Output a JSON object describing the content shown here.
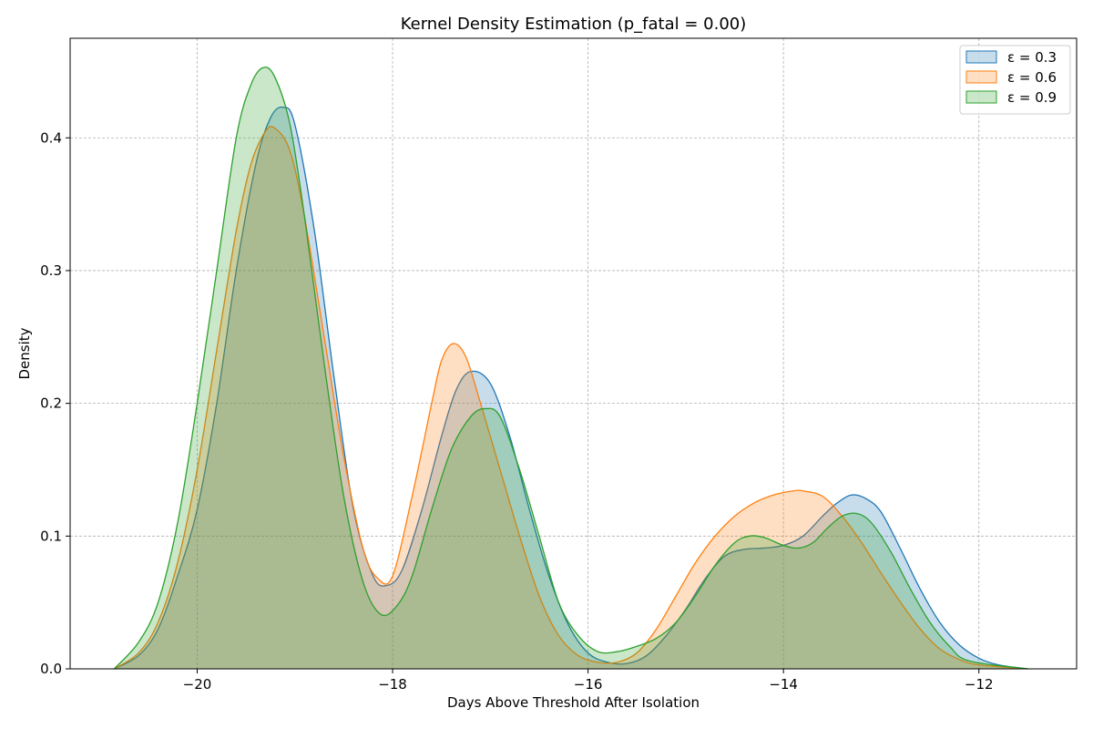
{
  "chart_data": {
    "type": "area",
    "title": "Kernel Density Estimation (p_fatal = 0.00)",
    "xlabel": "Days Above Threshold After Isolation",
    "ylabel": "Density",
    "xlim": [
      -21.3,
      -11.0
    ],
    "ylim": [
      0.0,
      0.475
    ],
    "xticks": [
      -20,
      -18,
      -16,
      -14,
      -12
    ],
    "xtick_labels": [
      "−20",
      "−18",
      "−16",
      "−14",
      "−12"
    ],
    "yticks": [
      0.0,
      0.1,
      0.2,
      0.3,
      0.4
    ],
    "ytick_labels": [
      "0.0",
      "0.1",
      "0.2",
      "0.3",
      "0.4"
    ],
    "grid": true,
    "legend_position": "top-right",
    "series": [
      {
        "name": "ε = 0.3",
        "color": "#1f77b4",
        "x": [
          -20.85,
          -20.6,
          -20.4,
          -20.2,
          -20.0,
          -19.8,
          -19.6,
          -19.4,
          -19.25,
          -19.12,
          -19.0,
          -18.8,
          -18.6,
          -18.4,
          -18.2,
          -18.05,
          -17.9,
          -17.7,
          -17.5,
          -17.35,
          -17.2,
          -17.0,
          -16.8,
          -16.6,
          -16.4,
          -16.2,
          -16.0,
          -15.8,
          -15.6,
          -15.4,
          -15.2,
          -15.0,
          -14.8,
          -14.6,
          -14.4,
          -14.2,
          -14.0,
          -13.8,
          -13.6,
          -13.45,
          -13.3,
          -13.15,
          -13.0,
          -12.8,
          -12.6,
          -12.4,
          -12.2,
          -12.0,
          -11.8,
          -11.5
        ],
        "y": [
          0.0,
          0.01,
          0.03,
          0.07,
          0.12,
          0.2,
          0.3,
          0.38,
          0.415,
          0.423,
          0.41,
          0.33,
          0.22,
          0.12,
          0.07,
          0.063,
          0.075,
          0.12,
          0.175,
          0.21,
          0.224,
          0.215,
          0.175,
          0.12,
          0.07,
          0.033,
          0.012,
          0.005,
          0.004,
          0.01,
          0.025,
          0.045,
          0.068,
          0.085,
          0.09,
          0.091,
          0.093,
          0.1,
          0.115,
          0.125,
          0.131,
          0.128,
          0.118,
          0.09,
          0.06,
          0.035,
          0.018,
          0.008,
          0.003,
          0.0
        ]
      },
      {
        "name": "ε = 0.6",
        "color": "#ff7f0e",
        "x": [
          -20.85,
          -20.6,
          -20.4,
          -20.2,
          -20.0,
          -19.8,
          -19.6,
          -19.45,
          -19.3,
          -19.2,
          -19.05,
          -18.9,
          -18.7,
          -18.5,
          -18.3,
          -18.15,
          -18.0,
          -17.8,
          -17.6,
          -17.5,
          -17.38,
          -17.25,
          -17.1,
          -16.9,
          -16.7,
          -16.5,
          -16.3,
          -16.1,
          -15.9,
          -15.7,
          -15.5,
          -15.3,
          -15.1,
          -14.9,
          -14.7,
          -14.5,
          -14.3,
          -14.1,
          -13.9,
          -13.8,
          -13.6,
          -13.4,
          -13.2,
          -13.0,
          -12.8,
          -12.6,
          -12.4,
          -12.2,
          -12.0,
          -11.5
        ],
        "y": [
          0.0,
          0.012,
          0.035,
          0.08,
          0.15,
          0.24,
          0.33,
          0.38,
          0.405,
          0.407,
          0.39,
          0.34,
          0.25,
          0.16,
          0.09,
          0.068,
          0.07,
          0.13,
          0.2,
          0.232,
          0.245,
          0.235,
          0.2,
          0.15,
          0.1,
          0.055,
          0.025,
          0.01,
          0.005,
          0.005,
          0.012,
          0.03,
          0.055,
          0.08,
          0.1,
          0.115,
          0.125,
          0.131,
          0.134,
          0.134,
          0.13,
          0.115,
          0.095,
          0.072,
          0.05,
          0.03,
          0.015,
          0.007,
          0.003,
          0.0
        ]
      },
      {
        "name": "ε = 0.9",
        "color": "#2ca02c",
        "x": [
          -20.85,
          -20.6,
          -20.4,
          -20.2,
          -20.0,
          -19.8,
          -19.6,
          -19.45,
          -19.32,
          -19.2,
          -19.05,
          -18.9,
          -18.7,
          -18.5,
          -18.3,
          -18.12,
          -17.95,
          -17.8,
          -17.6,
          -17.4,
          -17.2,
          -17.05,
          -16.9,
          -16.7,
          -16.5,
          -16.3,
          -16.1,
          -15.9,
          -15.7,
          -15.5,
          -15.3,
          -15.1,
          -14.9,
          -14.7,
          -14.5,
          -14.35,
          -14.2,
          -14.0,
          -13.85,
          -13.7,
          -13.55,
          -13.4,
          -13.25,
          -13.1,
          -12.9,
          -12.7,
          -12.5,
          -12.3,
          -12.1,
          -11.5
        ],
        "y": [
          0.0,
          0.02,
          0.05,
          0.11,
          0.2,
          0.3,
          0.4,
          0.44,
          0.453,
          0.445,
          0.41,
          0.34,
          0.23,
          0.13,
          0.065,
          0.041,
          0.048,
          0.07,
          0.12,
          0.165,
          0.19,
          0.196,
          0.19,
          0.15,
          0.1,
          0.05,
          0.025,
          0.013,
          0.013,
          0.017,
          0.023,
          0.035,
          0.055,
          0.078,
          0.095,
          0.1,
          0.099,
          0.093,
          0.091,
          0.095,
          0.106,
          0.115,
          0.117,
          0.11,
          0.088,
          0.06,
          0.035,
          0.017,
          0.006,
          0.0
        ]
      }
    ]
  }
}
